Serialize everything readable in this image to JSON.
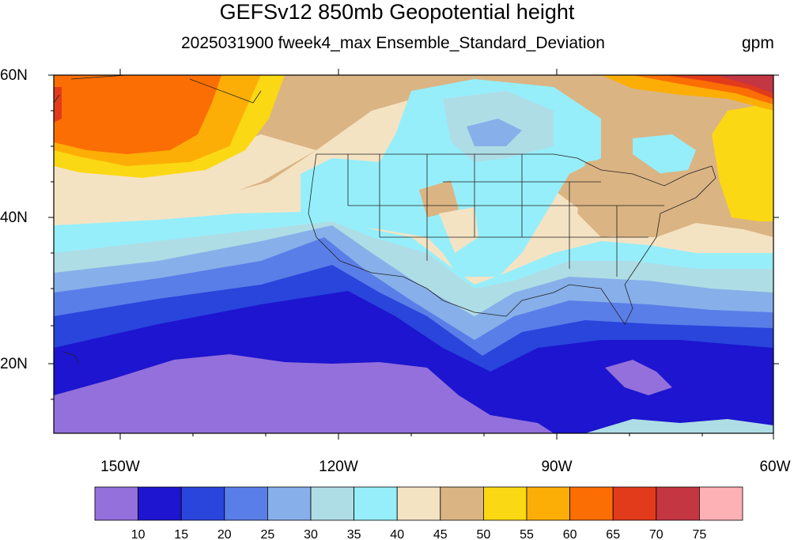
{
  "title": "GEFSv12 850mb Geopotential height",
  "subtitle": "2025031900 fweek4_max Ensemble_Standard_Deviation",
  "units": "gpm",
  "map": {
    "lat_labels": [
      "60N",
      "40N",
      "20N"
    ],
    "lon_labels": [
      "150W",
      "120W",
      "90W",
      "60W"
    ]
  },
  "colorbar": {
    "labels": [
      "10",
      "15",
      "20",
      "25",
      "30",
      "35",
      "40",
      "45",
      "50",
      "55",
      "60",
      "65",
      "70",
      "75"
    ],
    "colors": [
      "#9370db",
      "#1d15cf",
      "#2945dc",
      "#5a7ee8",
      "#87b0ea",
      "#afdde5",
      "#96eefb",
      "#f4e3c3",
      "#dbb483",
      "#fbd814",
      "#fcae07",
      "#fb6e04",
      "#e23b1b",
      "#c43642",
      "#feb1b5"
    ]
  }
}
